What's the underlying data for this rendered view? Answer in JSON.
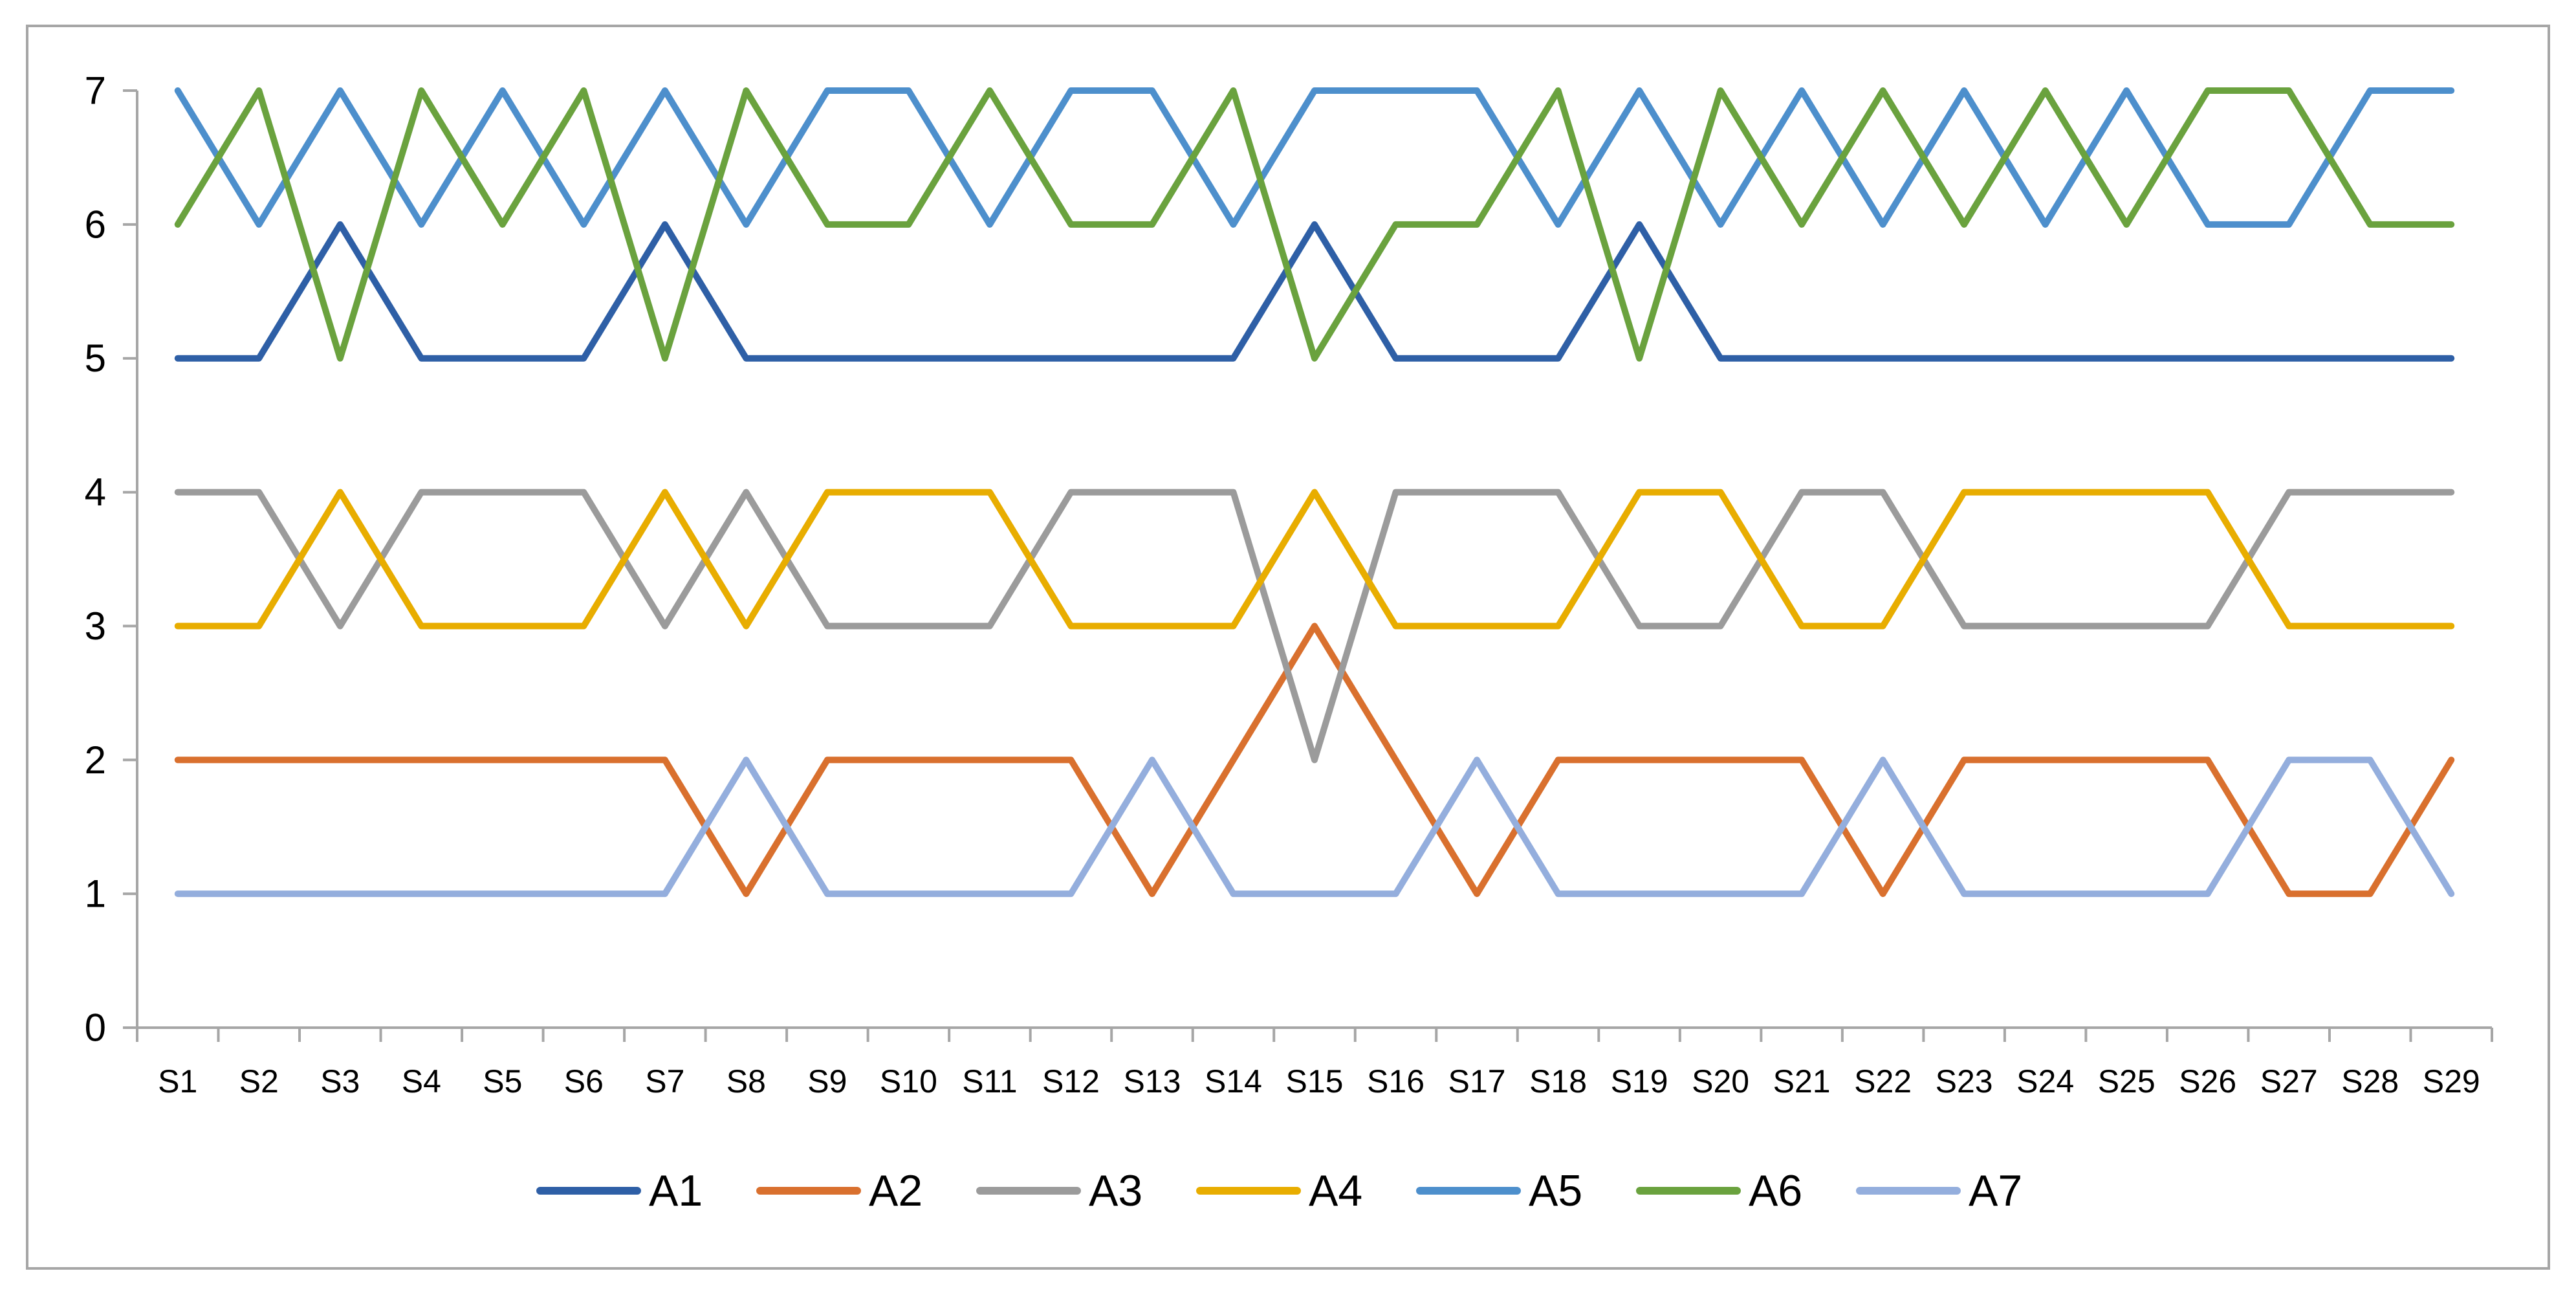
{
  "chart_data": {
    "type": "line",
    "title": "",
    "xlabel": "",
    "ylabel": "",
    "ylim": [
      0,
      7
    ],
    "yticks": [
      0,
      1,
      2,
      3,
      4,
      5,
      6,
      7
    ],
    "grid": false,
    "legend_position": "bottom",
    "categories": [
      "S1",
      "S2",
      "S3",
      "S4",
      "S5",
      "S6",
      "S7",
      "S8",
      "S9",
      "S10",
      "S11",
      "S12",
      "S13",
      "S14",
      "S15",
      "S16",
      "S17",
      "S18",
      "S19",
      "S20",
      "S21",
      "S22",
      "S23",
      "S24",
      "S25",
      "S26",
      "S27",
      "S28",
      "S29"
    ],
    "series": [
      {
        "name": "A1",
        "color": "#2E5FA6",
        "values": [
          5,
          5,
          6,
          5,
          5,
          5,
          6,
          5,
          5,
          5,
          5,
          5,
          5,
          5,
          6,
          5,
          5,
          5,
          6,
          5,
          5,
          5,
          5,
          5,
          5,
          5,
          5,
          5,
          5
        ]
      },
      {
        "name": "A2",
        "color": "#D9702E",
        "values": [
          2,
          2,
          2,
          2,
          2,
          2,
          2,
          1,
          2,
          2,
          2,
          2,
          1,
          2,
          3,
          2,
          1,
          2,
          2,
          2,
          2,
          1,
          2,
          2,
          2,
          2,
          1,
          1,
          2
        ]
      },
      {
        "name": "A3",
        "color": "#9B9B9B",
        "values": [
          4,
          4,
          3,
          4,
          4,
          4,
          3,
          4,
          3,
          3,
          3,
          4,
          4,
          4,
          2,
          4,
          4,
          4,
          3,
          3,
          4,
          4,
          3,
          3,
          3,
          3,
          4,
          4,
          4
        ]
      },
      {
        "name": "A4",
        "color": "#E8AD00",
        "values": [
          3,
          3,
          4,
          3,
          3,
          3,
          4,
          3,
          4,
          4,
          4,
          3,
          3,
          3,
          4,
          3,
          3,
          3,
          4,
          4,
          3,
          3,
          4,
          4,
          4,
          4,
          3,
          3,
          3
        ]
      },
      {
        "name": "A5",
        "color": "#4D8FCC",
        "values": [
          7,
          6,
          7,
          6,
          7,
          6,
          7,
          6,
          7,
          7,
          6,
          7,
          7,
          6,
          7,
          7,
          7,
          6,
          7,
          6,
          7,
          6,
          7,
          6,
          7,
          6,
          6,
          7,
          7
        ]
      },
      {
        "name": "A6",
        "color": "#6AA23E",
        "values": [
          6,
          7,
          5,
          7,
          6,
          7,
          5,
          7,
          6,
          6,
          7,
          6,
          6,
          7,
          5,
          6,
          6,
          7,
          5,
          7,
          6,
          7,
          6,
          7,
          6,
          7,
          7,
          6,
          6
        ]
      },
      {
        "name": "A7",
        "color": "#94AEDD",
        "values": [
          1,
          1,
          1,
          1,
          1,
          1,
          1,
          2,
          1,
          1,
          1,
          1,
          2,
          1,
          1,
          1,
          2,
          1,
          1,
          1,
          1,
          2,
          1,
          1,
          1,
          1,
          2,
          2,
          1
        ]
      }
    ]
  }
}
